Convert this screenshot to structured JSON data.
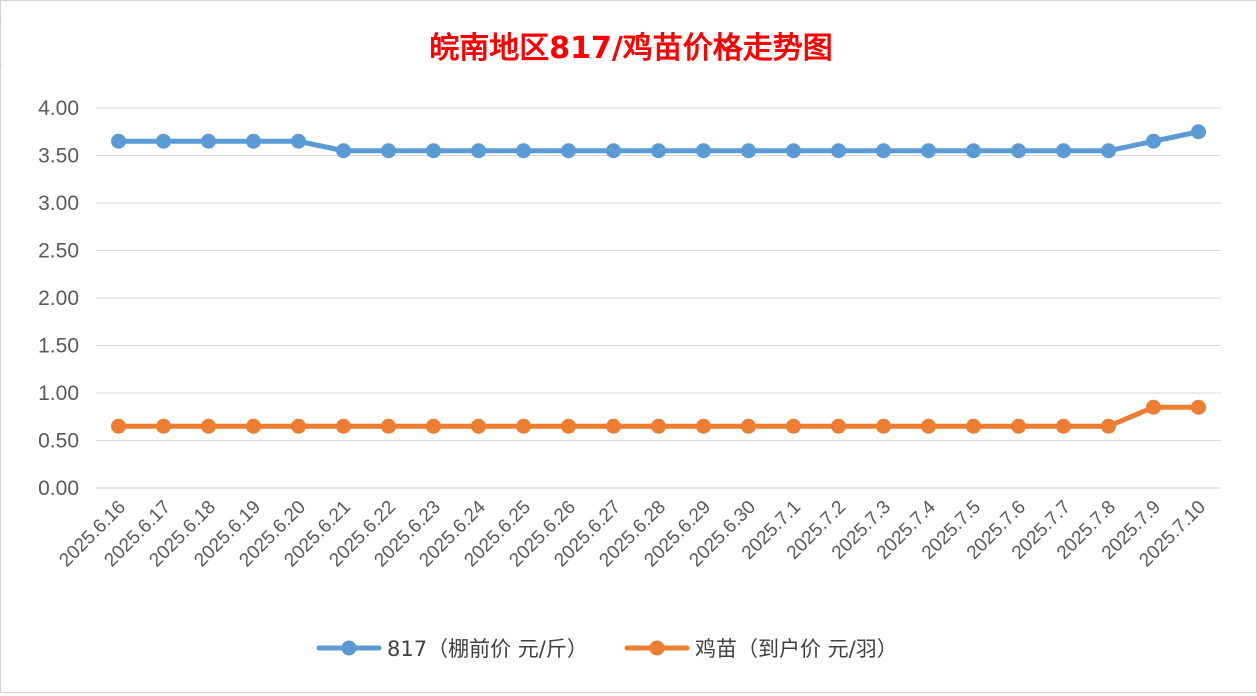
{
  "chart_data": {
    "type": "line",
    "title": "皖南地区817/鸡苗价格走势图",
    "xlabel": "",
    "ylabel": "",
    "ylim": [
      0,
      4
    ],
    "yticks": [
      "0.00",
      "0.50",
      "1.00",
      "1.50",
      "2.00",
      "2.50",
      "3.00",
      "3.50",
      "4.00"
    ],
    "grid": true,
    "legend_position": "bottom",
    "categories": [
      "2025.6.16",
      "2025.6.17",
      "2025.6.18",
      "2025.6.19",
      "2025.6.20",
      "2025.6.21",
      "2025.6.22",
      "2025.6.23",
      "2025.6.24",
      "2025.6.25",
      "2025.6.26",
      "2025.6.27",
      "2025.6.28",
      "2025.6.29",
      "2025.6.30",
      "2025.7.1",
      "2025.7.2",
      "2025.7.3",
      "2025.7.4",
      "2025.7.5",
      "2025.7.6",
      "2025.7.7",
      "2025.7.8",
      "2025.7.9",
      "2025.7.10"
    ],
    "series": [
      {
        "name": "817（棚前价 元/斤）",
        "color": "#5b9bd5",
        "values": [
          3.65,
          3.65,
          3.65,
          3.65,
          3.65,
          3.55,
          3.55,
          3.55,
          3.55,
          3.55,
          3.55,
          3.55,
          3.55,
          3.55,
          3.55,
          3.55,
          3.55,
          3.55,
          3.55,
          3.55,
          3.55,
          3.55,
          3.55,
          3.65,
          3.75
        ]
      },
      {
        "name": "鸡苗（到户价 元/羽）",
        "color": "#ed7d31",
        "values": [
          0.65,
          0.65,
          0.65,
          0.65,
          0.65,
          0.65,
          0.65,
          0.65,
          0.65,
          0.65,
          0.65,
          0.65,
          0.65,
          0.65,
          0.65,
          0.65,
          0.65,
          0.65,
          0.65,
          0.65,
          0.65,
          0.65,
          0.65,
          0.85,
          0.85
        ]
      }
    ]
  }
}
